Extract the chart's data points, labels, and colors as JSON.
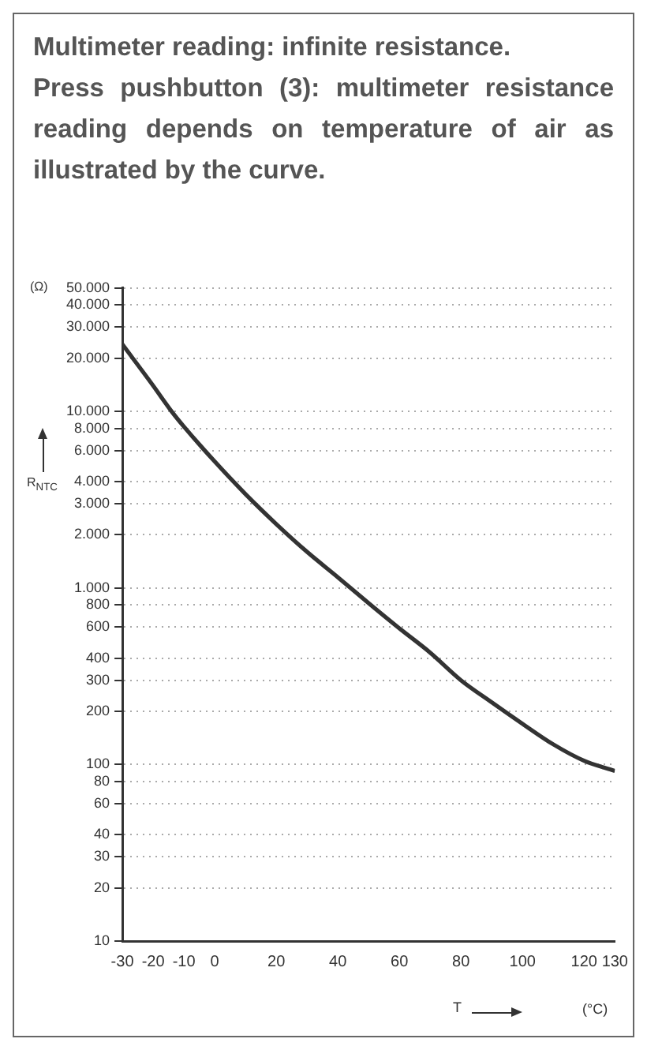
{
  "chart_data": {
    "type": "line",
    "title": "Multimeter reading: infinite resistance.",
    "subtitle": "Press pushbutton (3): multimeter resistance reading depends on temperature of air as illustrated by the curve.",
    "xlabel": "T",
    "ylabel": "R$_{NTC}$",
    "annotations": [
      "(Ω)",
      "(°C)"
    ],
    "x": [
      -30,
      -20,
      -14,
      -10,
      0,
      10,
      20,
      30,
      40,
      50,
      60,
      70,
      80,
      90,
      100,
      110,
      120,
      130
    ],
    "values": [
      24000,
      14000,
      10000,
      8200,
      5200,
      3400,
      2300,
      1600,
      1150,
      820,
      590,
      430,
      300,
      225,
      170,
      130,
      105,
      92
    ],
    "color": "#333333",
    "marker": "none",
    "line_style": "solid",
    "log": "y",
    "grid": "y",
    "legend": false,
    "xlim": [
      -30,
      130
    ],
    "xticks": [
      -30,
      -20,
      -10,
      0,
      20,
      40,
      60,
      80,
      100,
      120,
      130
    ],
    "ylim": [
      10,
      50000
    ],
    "yticks": [
      10,
      20,
      30,
      40,
      60,
      80,
      100,
      200,
      300,
      400,
      600,
      800,
      {
        "value": 1000,
        "label": "1.000"
      },
      {
        "value": 2000,
        "label": "2.000"
      },
      {
        "value": 3000,
        "label": "3.000"
      },
      {
        "value": 4000,
        "label": "4.000"
      },
      {
        "value": 6000,
        "label": "6.000"
      },
      {
        "value": 8000,
        "label": "8.000"
      },
      {
        "value": 10000,
        "label": "10.000"
      },
      {
        "value": 20000,
        "label": "20.000"
      },
      {
        "value": 30000,
        "label": "30.000"
      },
      {
        "value": 40000,
        "label": "40.000"
      },
      {
        "value": 50000,
        "label": "50.000"
      }
    ]
  }
}
